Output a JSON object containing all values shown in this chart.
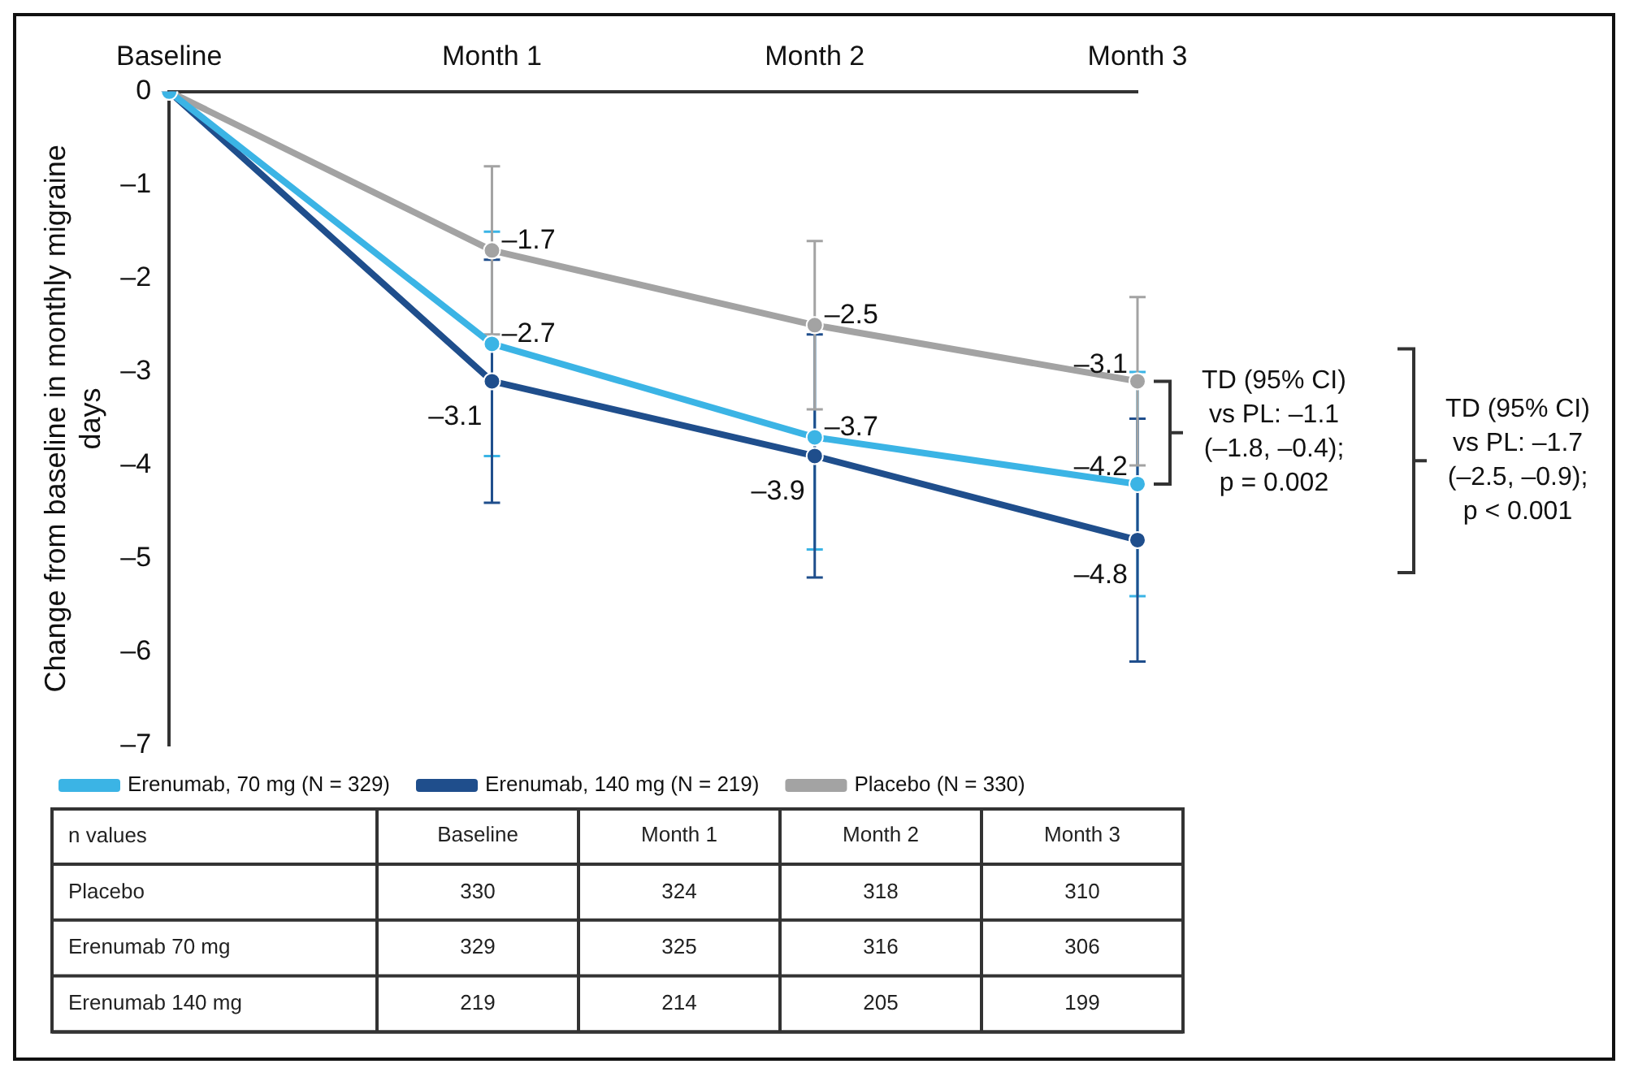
{
  "chart_data": [
    {
      "type": "line",
      "ylabel": "Change from baseline in monthly migraine days",
      "categories": [
        "Baseline",
        "Month 1",
        "Month 2",
        "Month 3"
      ],
      "series": [
        {
          "name": "Erenumab, 70 mg (N = 329)",
          "color": "#3bb4e5",
          "values": [
            0,
            -2.7,
            -3.7,
            -4.2
          ],
          "errors": [
            null,
            1.2,
            1.2,
            1.2
          ],
          "value_labels": [
            null,
            "–2.7",
            "–3.7",
            "–4.2"
          ]
        },
        {
          "name": "Erenumab, 140 mg (N = 219)",
          "color": "#1f4e8c",
          "values": [
            0,
            -3.1,
            -3.9,
            -4.8
          ],
          "errors": [
            null,
            1.3,
            1.3,
            1.3
          ],
          "value_labels": [
            null,
            "–3.1",
            "–3.9",
            "–4.8"
          ]
        },
        {
          "name": "Placebo (N = 330)",
          "color": "#a3a3a3",
          "values": [
            0,
            -1.7,
            -2.5,
            -3.1
          ],
          "errors": [
            null,
            0.9,
            0.9,
            0.9
          ],
          "value_labels": [
            null,
            "–1.7",
            "–2.5",
            "–3.1"
          ]
        }
      ],
      "ylim": [
        -7,
        0
      ],
      "yticks": [
        {
          "value": 0,
          "label": "0"
        },
        {
          "value": -1,
          "label": "–1"
        },
        {
          "value": -2,
          "label": "–2"
        },
        {
          "value": -3,
          "label": "–3"
        },
        {
          "value": -4,
          "label": "–4"
        },
        {
          "value": -5,
          "label": "–5"
        },
        {
          "value": -6,
          "label": "–6"
        },
        {
          "value": -7,
          "label": "–7"
        }
      ],
      "grid": false,
      "legend": "bottom",
      "marker": "circle",
      "line_style": "solid",
      "annotations": [
        "TD (95% CI)\nvs PL: –1.1\n(–1.8, –0.4);\np = 0.002",
        "TD (95% CI)\nvs PL: –1.7\n(–2.5, –0.9);\np < 0.001"
      ]
    },
    {
      "type": "heatmap",
      "title": "n values",
      "data_labels": true,
      "categories": [
        "Baseline",
        "Month 1",
        "Month 2",
        "Month 3"
      ],
      "y_categories": [
        "Placebo",
        "Erenumab 70 mg",
        "Erenumab 140 mg"
      ],
      "cells": [
        [
          330,
          324,
          318,
          310
        ],
        [
          329,
          325,
          316,
          306
        ],
        [
          219,
          214,
          205,
          199
        ]
      ]
    }
  ]
}
